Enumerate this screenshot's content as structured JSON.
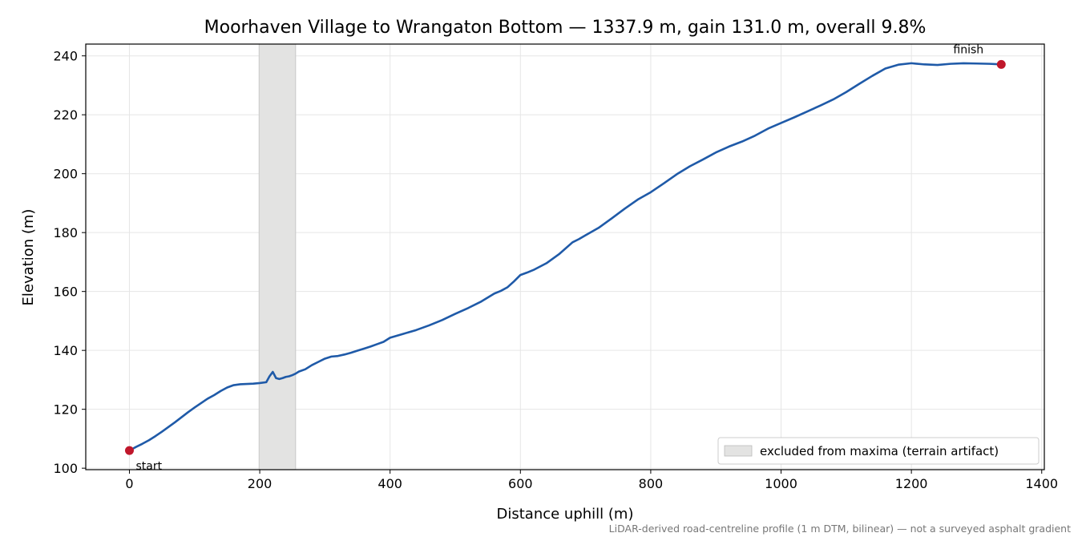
{
  "chart_data": {
    "type": "line",
    "title": "Moorhaven Village to Wrangaton Bottom — 1337.9 m, gain 131.0 m, overall 9.8%",
    "xlabel": "Distance uphill (m)",
    "ylabel": "Elevation (m)",
    "xlim": [
      -67,
      1404
    ],
    "ylim": [
      99.5,
      244
    ],
    "xticks": [
      0,
      200,
      400,
      600,
      800,
      1000,
      1200,
      1400
    ],
    "yticks": [
      100,
      120,
      140,
      160,
      180,
      200,
      220,
      240
    ],
    "grid": true,
    "line_color": "#1f5aa8",
    "marker_color": "#c0172b",
    "excluded_band": {
      "x_start": 199,
      "x_end": 255,
      "color": "#e3e3e2",
      "label": "excluded from maxima (terrain artifact)"
    },
    "legend_placement": "bottom-right",
    "series": [
      {
        "x": [
          0,
          10,
          20,
          30,
          40,
          50,
          60,
          70,
          80,
          90,
          100,
          110,
          120,
          130,
          140,
          150,
          160,
          170,
          180,
          190,
          200,
          210,
          215,
          220,
          225,
          230,
          235,
          240,
          245,
          250,
          255,
          260,
          270,
          280,
          290,
          300,
          310,
          320,
          330,
          340,
          350,
          360,
          370,
          380,
          390,
          400,
          420,
          440,
          460,
          480,
          500,
          520,
          540,
          560,
          570,
          580,
          590,
          600,
          610,
          620,
          640,
          660,
          680,
          690,
          700,
          720,
          740,
          760,
          780,
          800,
          820,
          840,
          860,
          880,
          900,
          920,
          940,
          960,
          980,
          1000,
          1020,
          1040,
          1060,
          1080,
          1100,
          1120,
          1140,
          1160,
          1180,
          1200,
          1220,
          1240,
          1260,
          1280,
          1300,
          1320,
          1337.9
        ],
        "y": [
          106,
          107.2,
          108.3,
          109.5,
          110.9,
          112.4,
          114,
          115.6,
          117.3,
          119,
          120.6,
          122.1,
          123.6,
          124.8,
          126.2,
          127.4,
          128.2,
          128.5,
          128.6,
          128.7,
          128.9,
          129.2,
          131.2,
          132.7,
          130.6,
          130.3,
          130.6,
          131,
          131.2,
          131.6,
          132.1,
          132.8,
          133.6,
          135,
          136.1,
          137.2,
          137.9,
          138.1,
          138.6,
          139.2,
          139.9,
          140.6,
          141.3,
          142.1,
          142.9,
          144.3,
          145.6,
          146.9,
          148.5,
          150.3,
          152.4,
          154.4,
          156.6,
          159.3,
          160.2,
          161.4,
          163.4,
          165.6,
          166.4,
          167.3,
          169.6,
          172.8,
          176.7,
          177.8,
          179.1,
          181.6,
          184.8,
          188.1,
          191.2,
          193.7,
          196.7,
          199.8,
          202.5,
          204.8,
          207.2,
          209.2,
          210.9,
          212.9,
          215.3,
          217.2,
          219.1,
          221.1,
          223.1,
          225.2,
          227.7,
          230.5,
          233.2,
          235.7,
          237,
          237.5,
          237.1,
          236.9,
          237.3,
          237.5,
          237.4,
          237.3,
          237.1
        ]
      }
    ],
    "annotations": {
      "start": {
        "text": "start",
        "x": 0,
        "y": 106
      },
      "finish": {
        "text": "finish",
        "x": 1337.9,
        "y": 237.1
      }
    },
    "footnote": "LiDAR-derived road-centreline profile (1 m DTM, bilinear) — not a surveyed asphalt gradient"
  }
}
